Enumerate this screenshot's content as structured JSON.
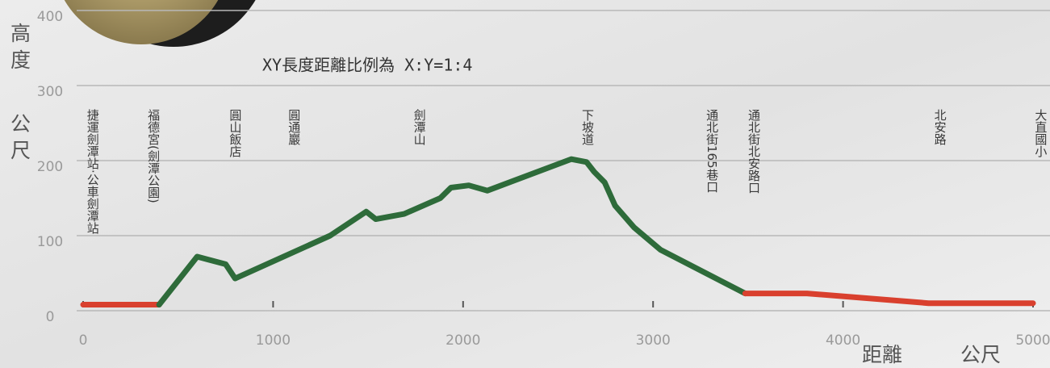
{
  "chart_data": {
    "type": "line",
    "annotation": "XY長度距離比例為 X:Y=1:4",
    "y_label_top": "高度",
    "y_label_bottom": "公尺",
    "x_label_left": "距離",
    "x_label_right": "公尺",
    "xlim": [
      0,
      5000
    ],
    "xticks": [
      0,
      1000,
      2000,
      3000,
      4000,
      5000
    ],
    "ylim": [
      0,
      400
    ],
    "yticks": [
      0,
      100,
      200,
      300,
      400
    ],
    "grid": true,
    "series": [
      {
        "color": "#d9402e",
        "x": [
          0,
          400
        ],
        "values": [
          8,
          8
        ]
      },
      {
        "color": "#2e6b3a",
        "x": [
          400,
          600,
          750,
          800,
          1300,
          1490,
          1540,
          1690,
          1880,
          1936,
          2030,
          2128,
          2570,
          2650,
          2690,
          2745,
          2800,
          2900,
          3040,
          3485
        ],
        "values": [
          8,
          72,
          62,
          43,
          100,
          132,
          122,
          129,
          150,
          164,
          167,
          160,
          202,
          198,
          185,
          171,
          140,
          111,
          81,
          23
        ]
      },
      {
        "color": "#d9402e",
        "x": [
          3485,
          3810,
          4450,
          5000
        ],
        "values": [
          23,
          23,
          10,
          10
        ]
      }
    ],
    "places": [
      {
        "label": "捷運劍潭站·公車劍潭站",
        "x": 50
      },
      {
        "label": "福德宮(劍潭公園)",
        "x": 370
      },
      {
        "label": "圓山飯店",
        "x": 800
      },
      {
        "label": "圓通巖",
        "x": 1110
      },
      {
        "label": "劍潭山",
        "x": 1770
      },
      {
        "label": "下坡道",
        "x": 2655
      },
      {
        "label": "通北街165巷口",
        "x": 3310
      },
      {
        "label": "通北街北安路口",
        "x": 3530
      },
      {
        "label": "北安路",
        "x": 4510
      },
      {
        "label": "大直國小",
        "x": 5040
      }
    ]
  }
}
